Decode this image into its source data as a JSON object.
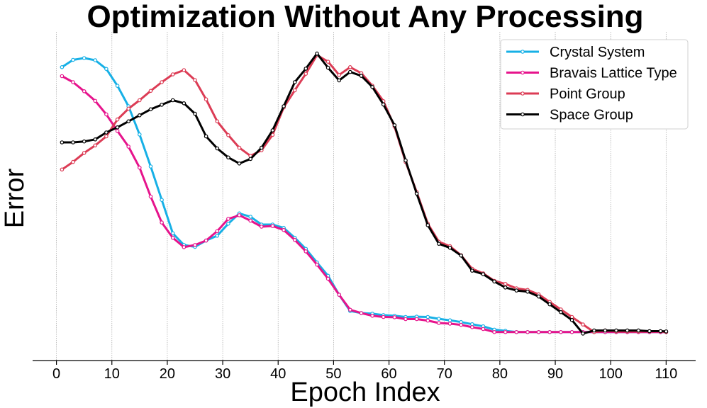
{
  "chart_data": {
    "type": "line",
    "title": "Optimization Without Any Processing",
    "xlabel": "Epoch Index",
    "ylabel": "Error",
    "xlim": [
      -4,
      115
    ],
    "ylim": [
      0,
      100
    ],
    "x_ticks": [
      0,
      10,
      20,
      30,
      40,
      50,
      60,
      70,
      80,
      90,
      100,
      110
    ],
    "grid": "vertical-dotted",
    "legend_position": "top-right",
    "x": [
      1,
      3,
      5,
      7,
      9,
      11,
      13,
      15,
      17,
      19,
      21,
      23,
      25,
      27,
      29,
      31,
      33,
      35,
      37,
      39,
      41,
      43,
      45,
      47,
      49,
      51,
      53,
      55,
      57,
      59,
      61,
      63,
      65,
      67,
      69,
      71,
      73,
      75,
      77,
      79,
      81,
      83,
      85,
      87,
      89,
      91,
      93,
      95,
      97,
      99,
      101,
      103,
      105,
      107,
      109,
      110
    ],
    "series": [
      {
        "name": "Crystal System",
        "color": "#17b0e6",
        "values": [
          93.0,
          95.4,
          96.0,
          95.3,
          92.4,
          86.8,
          80.0,
          70.6,
          60.0,
          48.9,
          37.8,
          33.9,
          33.3,
          35.4,
          37.0,
          41.0,
          44.4,
          43.3,
          40.7,
          40.7,
          39.6,
          36.3,
          32.6,
          28.1,
          23.7,
          17.4,
          12.0,
          11.3,
          11.1,
          10.6,
          10.4,
          10.0,
          10.1,
          10.0,
          9.4,
          8.9,
          8.3,
          7.6,
          6.9,
          5.8,
          5.4,
          5.0,
          5.0,
          5.0,
          5.0,
          5.0,
          5.0,
          5.0,
          5.0,
          5.0,
          5.0,
          5.0,
          5.0,
          5.0,
          5.0,
          5.0
        ]
      },
      {
        "name": "Bravais Lattice Type",
        "color": "#e6148c",
        "values": [
          90.0,
          88.0,
          85.0,
          81.8,
          77.3,
          71.8,
          66.6,
          59.6,
          50.0,
          41.4,
          36.3,
          33.2,
          33.9,
          35.4,
          38.5,
          42.6,
          43.8,
          42.0,
          40.0,
          40.2,
          38.9,
          35.6,
          31.8,
          27.4,
          22.7,
          17.4,
          12.4,
          11.3,
          10.4,
          10.0,
          9.9,
          9.3,
          9.3,
          8.8,
          8.0,
          7.8,
          7.4,
          6.6,
          6.0,
          5.0,
          5.0,
          5.0,
          5.0,
          5.0,
          5.0,
          5.0,
          5.0,
          5.0,
          5.0,
          5.0,
          5.0,
          5.0,
          5.0,
          5.0,
          5.0,
          5.0
        ]
      },
      {
        "name": "Point Group",
        "color": "#dc3c55",
        "values": [
          59.0,
          61.5,
          64.5,
          67.0,
          70.0,
          75.6,
          79.2,
          82.0,
          85.1,
          88.0,
          90.6,
          92.0,
          88.7,
          82.3,
          75.0,
          70.4,
          66.2,
          63.5,
          65.4,
          70.5,
          79.6,
          85.3,
          90.8,
          97.0,
          94.8,
          90.4,
          93.0,
          91.0,
          86.8,
          81.7,
          73.2,
          61.5,
          51.5,
          41.0,
          35.0,
          33.5,
          30.5,
          26.0,
          24.5,
          22.0,
          21.0,
          19.5,
          19.0,
          17.5,
          15.0,
          12.5,
          10.0,
          7.5,
          5.0,
          5.5,
          5.2,
          5.2,
          5.2,
          5.2,
          5.2,
          5.0
        ]
      },
      {
        "name": "Space Group",
        "color": "#000000",
        "values": [
          68.0,
          68.0,
          68.3,
          69.0,
          71.3,
          73.0,
          75.0,
          77.0,
          79.0,
          80.5,
          82.0,
          81.0,
          77.5,
          70.0,
          66.0,
          63.0,
          61.0,
          62.5,
          66.2,
          72.0,
          80.0,
          88.0,
          92.5,
          97.5,
          92.8,
          88.6,
          91.4,
          90.1,
          86.4,
          80.6,
          73.7,
          62.0,
          51.0,
          40.5,
          34.3,
          33.0,
          30.4,
          25.4,
          24.2,
          21.8,
          19.8,
          18.8,
          18.4,
          16.8,
          14.2,
          11.6,
          9.0,
          4.5,
          5.5,
          5.5,
          5.5,
          5.5,
          5.5,
          5.3,
          5.3,
          5.2
        ]
      }
    ]
  }
}
